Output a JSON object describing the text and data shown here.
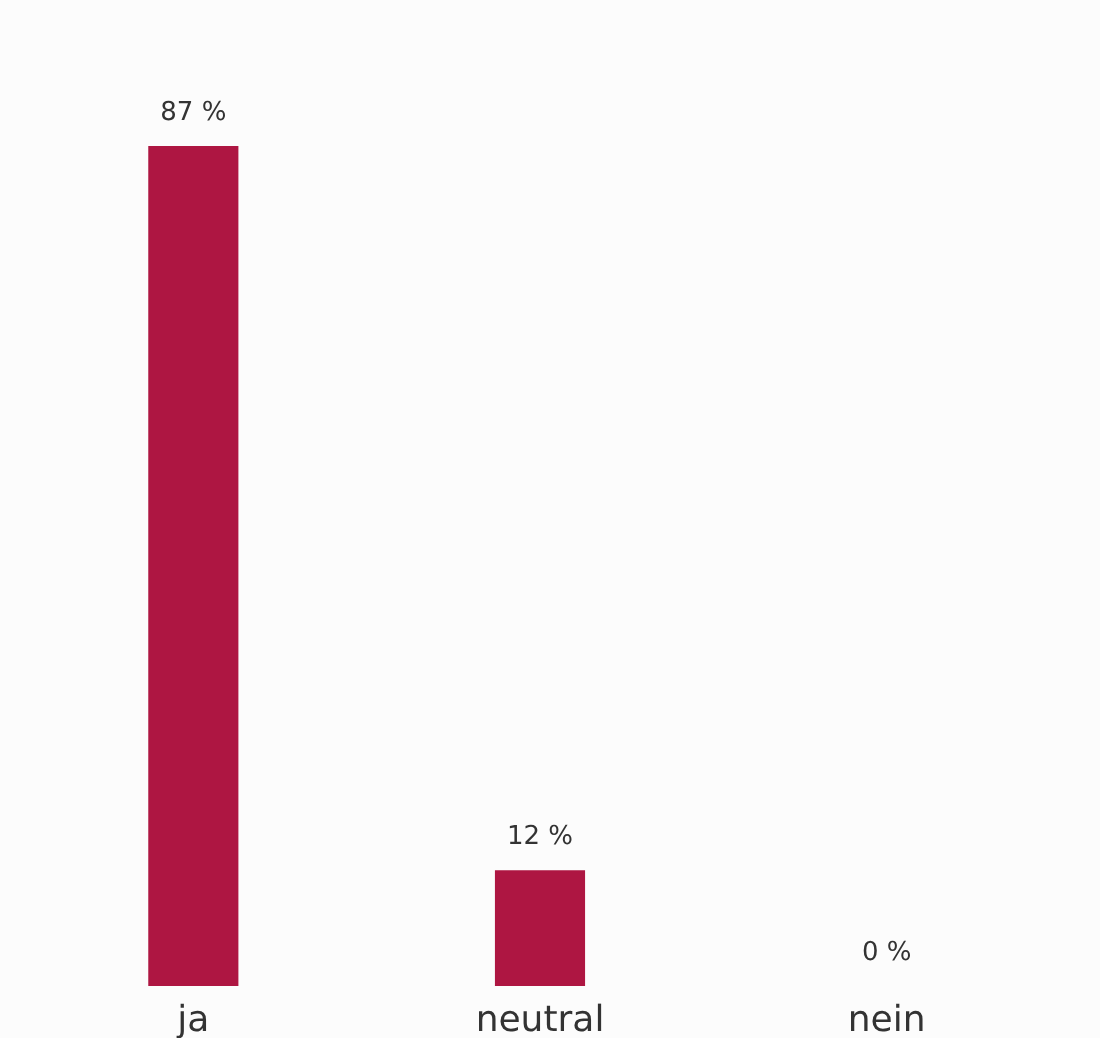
{
  "chart_data": {
    "type": "bar",
    "categories": [
      "ja",
      "neutral",
      "nein"
    ],
    "values": [
      87,
      12,
      0
    ],
    "color": "#ae1642",
    "value_labels": [
      "87 %",
      "12 %",
      "0 %"
    ],
    "grid": false
  }
}
